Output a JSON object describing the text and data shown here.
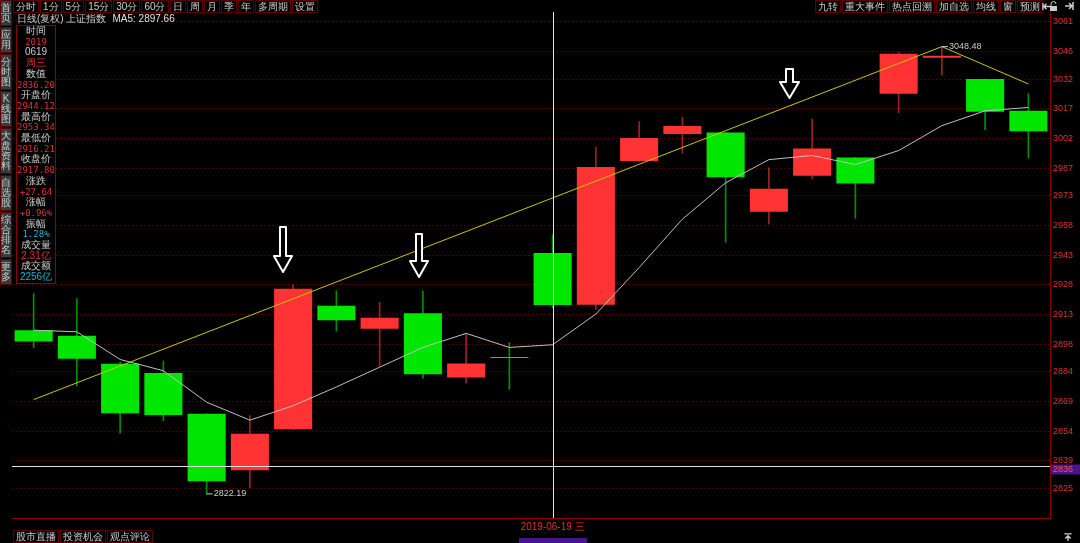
{
  "chart_data": {
    "type": "candlestick",
    "title": "日线(复权) 上证指数",
    "subtitle": "MA5: 2897.66",
    "categories": [
      null,
      null,
      null,
      null,
      null,
      null,
      null,
      null,
      null,
      null,
      null,
      null,
      "2019-06-19 三",
      null,
      null,
      null,
      null,
      null,
      null,
      null,
      null,
      null,
      null,
      null
    ],
    "ohlc": [
      [
        2905.0,
        2923.5,
        2896.1,
        2899.3
      ],
      [
        2902.2,
        2921.0,
        2876.9,
        2890.6
      ],
      [
        2888.0,
        2888.9,
        2852.9,
        2863.0
      ],
      [
        2883.4,
        2889.4,
        2859.2,
        2862.1
      ],
      [
        2862.8,
        2862.8,
        2822.19,
        2828.6
      ],
      [
        2834.1,
        2861.8,
        2825.3,
        2852.6
      ],
      [
        2854.9,
        2928.1,
        2854.9,
        2926.0
      ],
      [
        2917.4,
        2925.0,
        2904.5,
        2910.0
      ],
      [
        2905.7,
        2919.1,
        2886.7,
        2911.3
      ],
      [
        2913.6,
        2924.8,
        2880.6,
        2882.7
      ],
      [
        2881.1,
        2903.3,
        2878.2,
        2888.2
      ],
      [
        2891.5,
        2898.7,
        2875.1,
        2891.0
      ],
      [
        2944.12,
        2953.34,
        2916.21,
        2917.8
      ],
      [
        2917.9,
        2997.6,
        2915.7,
        2987.6
      ],
      [
        2990.6,
        3010.5,
        2990.1,
        3002.2
      ],
      [
        3004.3,
        3012.8,
        2994.6,
        3008.3
      ],
      [
        3005.0,
        3005.0,
        2949.5,
        2982.4
      ],
      [
        2965.0,
        2987.1,
        2958.8,
        2976.6
      ],
      [
        2983.1,
        3011.8,
        2981.6,
        2996.9
      ],
      [
        2992.4,
        2992.4,
        2961.7,
        2979.2
      ],
      [
        3024.7,
        3045.6,
        3015.0,
        3044.9
      ],
      [
        3042.8,
        3048.48,
        3034.1,
        3043.9
      ],
      [
        3032.1,
        3032.1,
        3006.5,
        3015.5
      ],
      [
        3016.0,
        3024.7,
        2992.3,
        3005.7
      ]
    ],
    "colors": [
      "#00e600",
      "#00e600",
      "#00e600",
      "#00e600",
      "#00e600",
      "#ff3333",
      "#ff3333",
      "#00e600",
      "#ff3333",
      "#00e600",
      "#ff3333",
      "#00e600",
      "#00e600",
      "#ff3333",
      "#ff3333",
      "#ff3333",
      "#00e600",
      "#ff3333",
      "#ff3333",
      "#00e600",
      "#ff3333",
      "#ff3333",
      "#00e600",
      "#00e600"
    ],
    "series": [
      {
        "type": "line",
        "color": "#c0c0c0",
        "values": [
          2905.0,
          2904.2,
          2890.2,
          2884.5,
          2868.6,
          2859.5,
          2866.8,
          2876.3,
          2886.3,
          2896.3,
          2903.4,
          2896.3,
          2897.66,
          2913.2,
          2936.7,
          2961.2,
          2979.6,
          2991.3,
          2993.4,
          2988.8,
          2995.9,
          3008.5,
          3016.0,
          3017.7
        ]
      },
      {
        "type": "line",
        "color": "#c8c800",
        "values": [
          2869.9,
          null,
          null,
          null,
          null,
          null,
          null,
          null,
          null,
          null,
          null,
          null,
          null,
          null,
          null,
          null,
          null,
          null,
          null,
          null,
          null,
          3048.48,
          null,
          3029.6
        ]
      }
    ],
    "ylim": [
      2810,
      3066
    ],
    "yticks": [
      3061,
      3046,
      3032,
      3017,
      3002,
      2987,
      2973,
      2958,
      2943,
      2928,
      2913,
      2898,
      2884,
      2869,
      2854,
      2839,
      2825
    ],
    "grid": "y",
    "legend": false,
    "ref_lines": [
      {
        "axis": "y",
        "value": 2836.2,
        "label": "2836",
        "color": "#e0e0e0"
      },
      {
        "axis": "x",
        "value": "2019-06-19 三",
        "color": "#e0e0e0"
      }
    ],
    "annotations": [
      "分时",
      "1分",
      "5分",
      "15分",
      "30分",
      "60分",
      "日",
      "周",
      "月",
      "季",
      "年",
      "多周期",
      "设置",
      "九转",
      "重大事件",
      "热点回溯",
      "加自选",
      "均线",
      "窗",
      "预测",
      "首页",
      "应用",
      "分时图",
      "K线图",
      "大盘资料",
      "自选股",
      "综合排名",
      "更多",
      "时间",
      "2019",
      "0619",
      "周三",
      "数值",
      "2836.20",
      "开盘价",
      "2944.12",
      "最高价",
      "2953.34",
      "最低价",
      "2916.21",
      "收盘价",
      "2917.80",
      "涨跌",
      "+27.64",
      "涨幅",
      "+0.96%",
      "振幅",
      "1.28%",
      "成交量",
      "2.31亿",
      "成交额",
      "2256亿",
      "股市直播",
      "投资机会",
      "观点评论",
      "2822.19",
      "3048.48"
    ]
  }
}
